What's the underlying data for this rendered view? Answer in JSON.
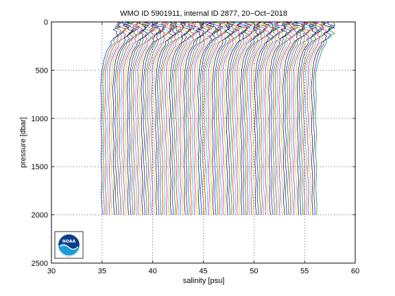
{
  "chart_data": {
    "type": "line",
    "title": "WMO ID 5901911, internal ID 2877, 20−Oct−2018",
    "xlabel": "salinity [psu]",
    "ylabel": "pressure [dbar]",
    "xlim": [
      30,
      60
    ],
    "ylim": [
      0,
      2500
    ],
    "y_reversed": true,
    "xticks": [
      30,
      35,
      40,
      45,
      50,
      55,
      60
    ],
    "yticks": [
      0,
      500,
      1000,
      1500,
      2000,
      2500
    ],
    "grid": true,
    "grid_style": "dotted",
    "logo": "noaa",
    "profile_count": 107,
    "offset_start": 0.0,
    "offset_step": 0.2,
    "max_pressure": 2000,
    "series_colors": [
      "#0000ff",
      "#008000",
      "#ff0000",
      "#00bfbf",
      "#bf00bf",
      "#bfbf00",
      "#000000"
    ],
    "base_profile": {
      "pressure": [
        0,
        30,
        60,
        100,
        150,
        200,
        250,
        300,
        400,
        500,
        700,
        1000,
        1500,
        2000
      ],
      "salinity": [
        36.4,
        36.3,
        36.6,
        36.5,
        36.3,
        36.0,
        35.8,
        35.5,
        35.15,
        34.95,
        34.9,
        34.92,
        34.95,
        34.98
      ]
    }
  }
}
